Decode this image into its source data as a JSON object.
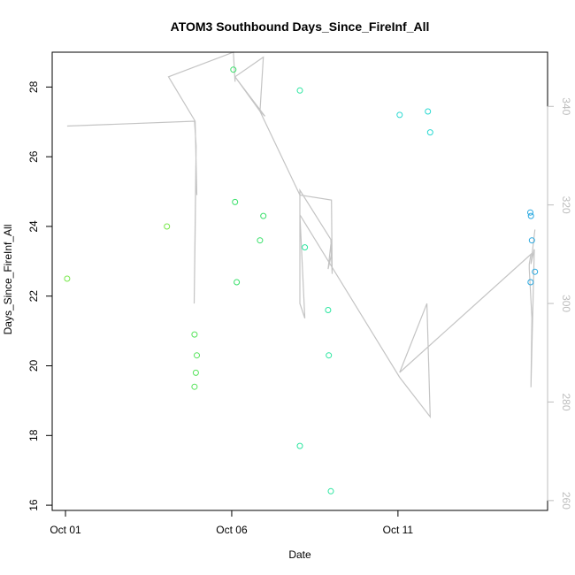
{
  "chart_data": {
    "type": "scatter",
    "title": "ATOM3 Southbound Days_Since_FireInf_All",
    "xlabel": "Date",
    "ylabel": "Days_Since_FireInf_All",
    "x_ticks": [
      "Oct 01",
      "Oct 06",
      "Oct 11"
    ],
    "x_tick_values": [
      1,
      6,
      11
    ],
    "xlim": [
      0.6,
      15.5
    ],
    "ylim": [
      15.85,
      29.0
    ],
    "y_ticks": [
      16,
      18,
      20,
      22,
      24,
      26,
      28
    ],
    "y2lim": [
      258,
      351
    ],
    "y2_ticks": [
      260,
      280,
      300,
      320,
      340
    ],
    "y2_color": "#bdbdbd",
    "grid": false,
    "points": [
      {
        "x": 1.05,
        "y": 22.5,
        "color": "#77e84a"
      },
      {
        "x": 4.05,
        "y": 24.0,
        "color": "#77e84a"
      },
      {
        "x": 4.88,
        "y": 20.9,
        "color": "#55e35a"
      },
      {
        "x": 4.88,
        "y": 19.4,
        "color": "#55e35a"
      },
      {
        "x": 4.92,
        "y": 19.8,
        "color": "#55e35a"
      },
      {
        "x": 4.95,
        "y": 20.3,
        "color": "#55e35a"
      },
      {
        "x": 6.05,
        "y": 28.5,
        "color": "#39e06a"
      },
      {
        "x": 6.1,
        "y": 24.7,
        "color": "#39e06a"
      },
      {
        "x": 6.15,
        "y": 22.4,
        "color": "#39e06a"
      },
      {
        "x": 6.85,
        "y": 23.6,
        "color": "#39e06a"
      },
      {
        "x": 6.95,
        "y": 24.3,
        "color": "#39e06a"
      },
      {
        "x": 8.05,
        "y": 27.9,
        "color": "#2be6a0"
      },
      {
        "x": 8.05,
        "y": 17.7,
        "color": "#2be6a0"
      },
      {
        "x": 8.2,
        "y": 23.4,
        "color": "#2be6a0"
      },
      {
        "x": 8.9,
        "y": 21.6,
        "color": "#2be6a0"
      },
      {
        "x": 8.92,
        "y": 20.3,
        "color": "#2be6a0"
      },
      {
        "x": 8.98,
        "y": 16.4,
        "color": "#2be6a0"
      },
      {
        "x": 11.05,
        "y": 27.2,
        "color": "#2ad9d2"
      },
      {
        "x": 11.9,
        "y": 27.3,
        "color": "#2ad9d2"
      },
      {
        "x": 11.97,
        "y": 26.7,
        "color": "#2ad9d2"
      },
      {
        "x": 14.98,
        "y": 24.4,
        "color": "#2aa8e0"
      },
      {
        "x": 15.0,
        "y": 24.3,
        "color": "#2aa8e0"
      },
      {
        "x": 15.03,
        "y": 23.6,
        "color": "#2aa8e0"
      },
      {
        "x": 14.99,
        "y": 22.4,
        "color": "#2aa8e0"
      },
      {
        "x": 15.12,
        "y": 22.7,
        "color": "#2aa8e0"
      }
    ],
    "secondary_line": {
      "color": "#c4c4c4",
      "x": [
        1.05,
        4.88,
        4.93,
        4.9,
        4.87,
        4.92,
        4.95,
        4.9,
        4.1,
        6.05,
        6.1,
        6.1,
        6.95,
        6.85,
        7.0,
        6.1,
        6.85,
        8.05,
        9.0,
        9.02,
        8.98,
        8.9,
        9.0,
        8.98,
        8.05,
        8.05,
        8.2,
        8.05,
        11.05,
        11.97,
        11.87,
        11.05,
        15.0,
        14.95,
        14.95,
        15.03,
        15.0,
        15.1,
        15.0,
        15.12
      ]
    },
    "secondary_line_y2": [
      336,
      337,
      332,
      314,
      300,
      328,
      322,
      337,
      346,
      351,
      345,
      346,
      350,
      339,
      338,
      346,
      339,
      322,
      321,
      306,
      312,
      307,
      310,
      313,
      323,
      300,
      297,
      318,
      285,
      277,
      300,
      286,
      310,
      308,
      307,
      297,
      283,
      311,
      308,
      315
    ]
  }
}
